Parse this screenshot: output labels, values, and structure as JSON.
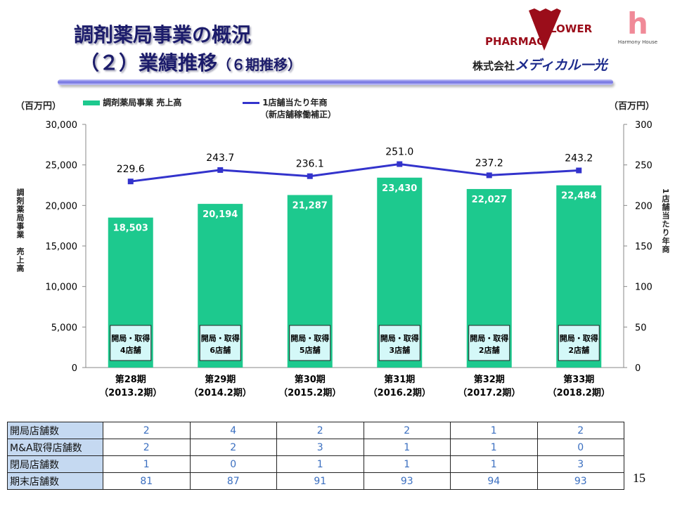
{
  "header": {
    "title_line1": "調剤薬局事業の概況",
    "title_line2_main": "（２）業績推移",
    "title_line2_sub": "（６期推移）"
  },
  "logos": {
    "pharmac_flower": "PHARMAC FLOWER",
    "harmony_house": "Harmony House",
    "company_prefix": "株式会社",
    "company_name": "メディカル一光",
    "brand_color": "#9b0d1a"
  },
  "chart_data": {
    "type": "bar+line",
    "categories": [
      [
        "第28期",
        "（2013.2期）"
      ],
      [
        "第29期",
        "（2014.2期）"
      ],
      [
        "第30期",
        "（2015.2期）"
      ],
      [
        "第31期",
        "（2016.2期）"
      ],
      [
        "第32期",
        "（2017.2期）"
      ],
      [
        "第33期",
        "（2018.2期）"
      ]
    ],
    "left_unit": "（百万円）",
    "right_unit": "（百万円）",
    "ylabel": "調剤薬局事業　売上高",
    "y2label": "1店舗当たり年商",
    "ylim": [
      0,
      30000
    ],
    "y2lim": [
      0,
      300
    ],
    "yticks": [
      "0",
      "5,000",
      "10,000",
      "15,000",
      "20,000",
      "25,000",
      "30,000"
    ],
    "y2ticks": [
      "0",
      "50",
      "100",
      "150",
      "200",
      "250",
      "300"
    ],
    "series": [
      {
        "name": "調剤薬局事業 売上高",
        "type": "bar",
        "color": "#1dc98e",
        "values": [
          18503,
          20194,
          21287,
          23430,
          22027,
          22484
        ],
        "labels": [
          "18,503",
          "20,194",
          "21,287",
          "23,430",
          "22,027",
          "22,484"
        ]
      },
      {
        "name": "1店舗当たり年商",
        "name2": "（新店舗稼働補正）",
        "type": "line",
        "axis": "right",
        "color": "#3333cc",
        "values": [
          229.6,
          243.7,
          236.1,
          251.0,
          237.2,
          243.2
        ],
        "labels": [
          "229.6",
          "243.7",
          "236.1",
          "251.0",
          "237.2",
          "243.2"
        ]
      }
    ],
    "annotations": [
      [
        "開局・取得",
        "4店舗"
      ],
      [
        "開局・取得",
        "6店舗"
      ],
      [
        "開局・取得",
        "5店舗"
      ],
      [
        "開局・取得",
        "3店舗"
      ],
      [
        "開局・取得",
        "2店舗"
      ],
      [
        "開局・取得",
        "2店舗"
      ]
    ],
    "grid": false,
    "legend": "top"
  },
  "table": {
    "rows": [
      {
        "label": "開局店舗数",
        "values": [
          "2",
          "4",
          "2",
          "2",
          "1",
          "2"
        ]
      },
      {
        "label": "M&A取得店舗数",
        "values": [
          "2",
          "2",
          "3",
          "1",
          "1",
          "0"
        ]
      },
      {
        "label": "閉局店舗数",
        "values": [
          "1",
          "0",
          "1",
          "1",
          "1",
          "3"
        ]
      },
      {
        "label": "期末店舗数",
        "values": [
          "81",
          "87",
          "91",
          "93",
          "94",
          "93"
        ]
      }
    ]
  },
  "page_number": "15"
}
